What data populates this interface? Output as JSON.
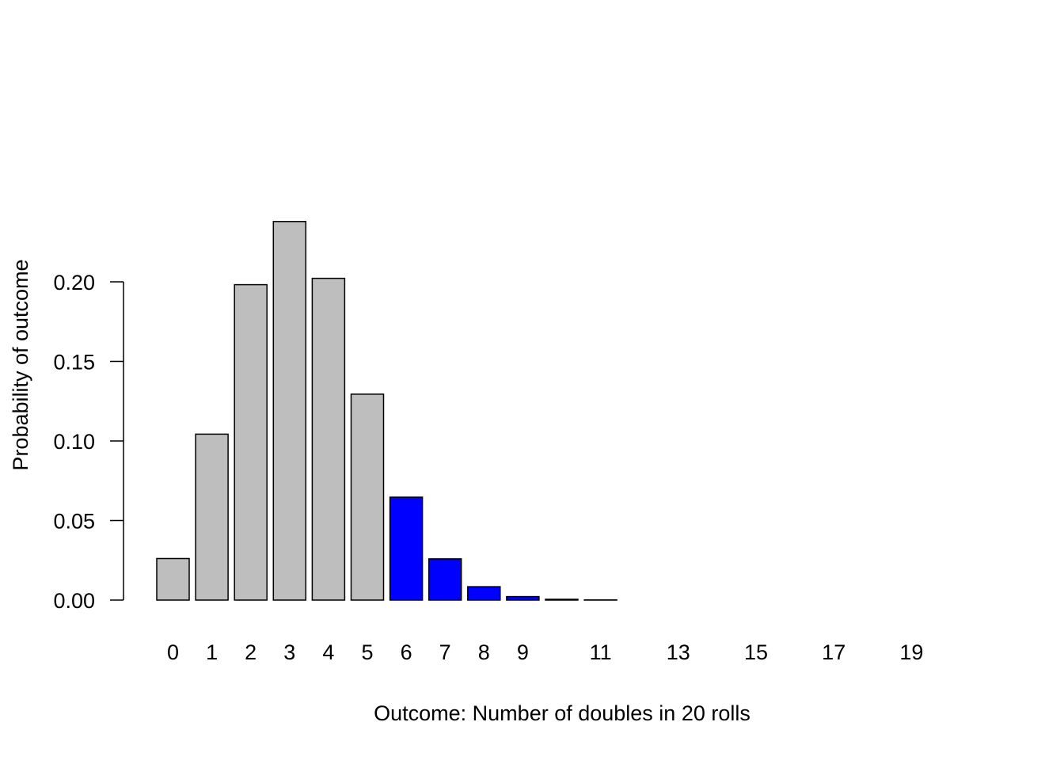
{
  "chart_data": {
    "type": "bar",
    "title": "",
    "xlabel": "Outcome: Number of doubles in 20 rolls",
    "ylabel": "Probability of outcome",
    "ylim": [
      0,
      0.25
    ],
    "yticks": [
      0,
      0.05,
      0.1,
      0.15,
      0.2
    ],
    "ytick_labels": [
      "0.00",
      "0.05",
      "0.10",
      "0.15",
      "0.20"
    ],
    "grid": false,
    "legend": "none",
    "categories": [
      "0",
      "1",
      "2",
      "3",
      "4",
      "5",
      "6",
      "7",
      "8",
      "9",
      "10",
      "11",
      "12",
      "13",
      "14",
      "15",
      "16",
      "17",
      "18",
      "19",
      "20"
    ],
    "visible_x_labels": [
      "0",
      "1",
      "2",
      "3",
      "4",
      "5",
      "6",
      "7",
      "8",
      "9",
      "11",
      "13",
      "15",
      "17",
      "19"
    ],
    "values": [
      0.0261,
      0.1043,
      0.1982,
      0.2379,
      0.2022,
      0.1294,
      0.0647,
      0.0259,
      0.0084,
      0.0022,
      0.0005,
      0.0001,
      0,
      0,
      0,
      0,
      0,
      0,
      0,
      0,
      0
    ],
    "highlight_from": 6,
    "colors": {
      "base": "#bebebe",
      "highlight": "#0000ff",
      "outline": "#000000"
    }
  }
}
